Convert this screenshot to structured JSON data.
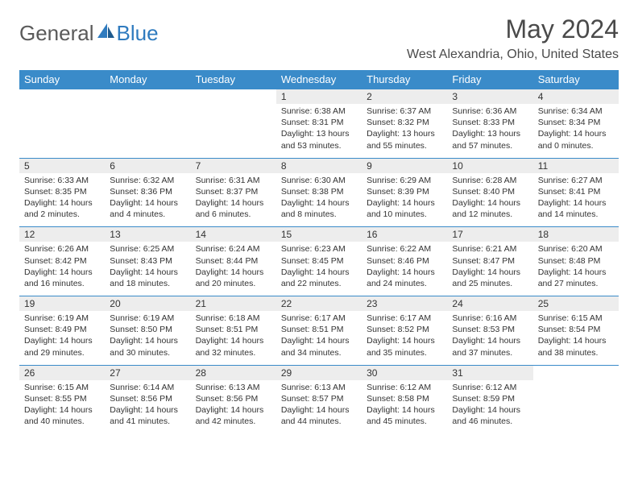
{
  "logo": {
    "text1": "General",
    "text2": "Blue"
  },
  "title": "May 2024",
  "location": "West Alexandria, Ohio, United States",
  "colors": {
    "header_bg": "#3a8bc9",
    "header_text": "#ffffff",
    "daynum_bg": "#ededed",
    "border": "#3a8bc9",
    "logo_gray": "#5a5a5a",
    "logo_blue": "#2f7bbf"
  },
  "day_names": [
    "Sunday",
    "Monday",
    "Tuesday",
    "Wednesday",
    "Thursday",
    "Friday",
    "Saturday"
  ],
  "weeks": [
    {
      "nums": [
        "",
        "",
        "",
        "1",
        "2",
        "3",
        "4"
      ],
      "cells": [
        {
          "sunrise": "",
          "sunset": "",
          "daylight1": "",
          "daylight2": ""
        },
        {
          "sunrise": "",
          "sunset": "",
          "daylight1": "",
          "daylight2": ""
        },
        {
          "sunrise": "",
          "sunset": "",
          "daylight1": "",
          "daylight2": ""
        },
        {
          "sunrise": "Sunrise: 6:38 AM",
          "sunset": "Sunset: 8:31 PM",
          "daylight1": "Daylight: 13 hours",
          "daylight2": "and 53 minutes."
        },
        {
          "sunrise": "Sunrise: 6:37 AM",
          "sunset": "Sunset: 8:32 PM",
          "daylight1": "Daylight: 13 hours",
          "daylight2": "and 55 minutes."
        },
        {
          "sunrise": "Sunrise: 6:36 AM",
          "sunset": "Sunset: 8:33 PM",
          "daylight1": "Daylight: 13 hours",
          "daylight2": "and 57 minutes."
        },
        {
          "sunrise": "Sunrise: 6:34 AM",
          "sunset": "Sunset: 8:34 PM",
          "daylight1": "Daylight: 14 hours",
          "daylight2": "and 0 minutes."
        }
      ]
    },
    {
      "nums": [
        "5",
        "6",
        "7",
        "8",
        "9",
        "10",
        "11"
      ],
      "cells": [
        {
          "sunrise": "Sunrise: 6:33 AM",
          "sunset": "Sunset: 8:35 PM",
          "daylight1": "Daylight: 14 hours",
          "daylight2": "and 2 minutes."
        },
        {
          "sunrise": "Sunrise: 6:32 AM",
          "sunset": "Sunset: 8:36 PM",
          "daylight1": "Daylight: 14 hours",
          "daylight2": "and 4 minutes."
        },
        {
          "sunrise": "Sunrise: 6:31 AM",
          "sunset": "Sunset: 8:37 PM",
          "daylight1": "Daylight: 14 hours",
          "daylight2": "and 6 minutes."
        },
        {
          "sunrise": "Sunrise: 6:30 AM",
          "sunset": "Sunset: 8:38 PM",
          "daylight1": "Daylight: 14 hours",
          "daylight2": "and 8 minutes."
        },
        {
          "sunrise": "Sunrise: 6:29 AM",
          "sunset": "Sunset: 8:39 PM",
          "daylight1": "Daylight: 14 hours",
          "daylight2": "and 10 minutes."
        },
        {
          "sunrise": "Sunrise: 6:28 AM",
          "sunset": "Sunset: 8:40 PM",
          "daylight1": "Daylight: 14 hours",
          "daylight2": "and 12 minutes."
        },
        {
          "sunrise": "Sunrise: 6:27 AM",
          "sunset": "Sunset: 8:41 PM",
          "daylight1": "Daylight: 14 hours",
          "daylight2": "and 14 minutes."
        }
      ]
    },
    {
      "nums": [
        "12",
        "13",
        "14",
        "15",
        "16",
        "17",
        "18"
      ],
      "cells": [
        {
          "sunrise": "Sunrise: 6:26 AM",
          "sunset": "Sunset: 8:42 PM",
          "daylight1": "Daylight: 14 hours",
          "daylight2": "and 16 minutes."
        },
        {
          "sunrise": "Sunrise: 6:25 AM",
          "sunset": "Sunset: 8:43 PM",
          "daylight1": "Daylight: 14 hours",
          "daylight2": "and 18 minutes."
        },
        {
          "sunrise": "Sunrise: 6:24 AM",
          "sunset": "Sunset: 8:44 PM",
          "daylight1": "Daylight: 14 hours",
          "daylight2": "and 20 minutes."
        },
        {
          "sunrise": "Sunrise: 6:23 AM",
          "sunset": "Sunset: 8:45 PM",
          "daylight1": "Daylight: 14 hours",
          "daylight2": "and 22 minutes."
        },
        {
          "sunrise": "Sunrise: 6:22 AM",
          "sunset": "Sunset: 8:46 PM",
          "daylight1": "Daylight: 14 hours",
          "daylight2": "and 24 minutes."
        },
        {
          "sunrise": "Sunrise: 6:21 AM",
          "sunset": "Sunset: 8:47 PM",
          "daylight1": "Daylight: 14 hours",
          "daylight2": "and 25 minutes."
        },
        {
          "sunrise": "Sunrise: 6:20 AM",
          "sunset": "Sunset: 8:48 PM",
          "daylight1": "Daylight: 14 hours",
          "daylight2": "and 27 minutes."
        }
      ]
    },
    {
      "nums": [
        "19",
        "20",
        "21",
        "22",
        "23",
        "24",
        "25"
      ],
      "cells": [
        {
          "sunrise": "Sunrise: 6:19 AM",
          "sunset": "Sunset: 8:49 PM",
          "daylight1": "Daylight: 14 hours",
          "daylight2": "and 29 minutes."
        },
        {
          "sunrise": "Sunrise: 6:19 AM",
          "sunset": "Sunset: 8:50 PM",
          "daylight1": "Daylight: 14 hours",
          "daylight2": "and 30 minutes."
        },
        {
          "sunrise": "Sunrise: 6:18 AM",
          "sunset": "Sunset: 8:51 PM",
          "daylight1": "Daylight: 14 hours",
          "daylight2": "and 32 minutes."
        },
        {
          "sunrise": "Sunrise: 6:17 AM",
          "sunset": "Sunset: 8:51 PM",
          "daylight1": "Daylight: 14 hours",
          "daylight2": "and 34 minutes."
        },
        {
          "sunrise": "Sunrise: 6:17 AM",
          "sunset": "Sunset: 8:52 PM",
          "daylight1": "Daylight: 14 hours",
          "daylight2": "and 35 minutes."
        },
        {
          "sunrise": "Sunrise: 6:16 AM",
          "sunset": "Sunset: 8:53 PM",
          "daylight1": "Daylight: 14 hours",
          "daylight2": "and 37 minutes."
        },
        {
          "sunrise": "Sunrise: 6:15 AM",
          "sunset": "Sunset: 8:54 PM",
          "daylight1": "Daylight: 14 hours",
          "daylight2": "and 38 minutes."
        }
      ]
    },
    {
      "nums": [
        "26",
        "27",
        "28",
        "29",
        "30",
        "31",
        ""
      ],
      "cells": [
        {
          "sunrise": "Sunrise: 6:15 AM",
          "sunset": "Sunset: 8:55 PM",
          "daylight1": "Daylight: 14 hours",
          "daylight2": "and 40 minutes."
        },
        {
          "sunrise": "Sunrise: 6:14 AM",
          "sunset": "Sunset: 8:56 PM",
          "daylight1": "Daylight: 14 hours",
          "daylight2": "and 41 minutes."
        },
        {
          "sunrise": "Sunrise: 6:13 AM",
          "sunset": "Sunset: 8:56 PM",
          "daylight1": "Daylight: 14 hours",
          "daylight2": "and 42 minutes."
        },
        {
          "sunrise": "Sunrise: 6:13 AM",
          "sunset": "Sunset: 8:57 PM",
          "daylight1": "Daylight: 14 hours",
          "daylight2": "and 44 minutes."
        },
        {
          "sunrise": "Sunrise: 6:12 AM",
          "sunset": "Sunset: 8:58 PM",
          "daylight1": "Daylight: 14 hours",
          "daylight2": "and 45 minutes."
        },
        {
          "sunrise": "Sunrise: 6:12 AM",
          "sunset": "Sunset: 8:59 PM",
          "daylight1": "Daylight: 14 hours",
          "daylight2": "and 46 minutes."
        },
        {
          "sunrise": "",
          "sunset": "",
          "daylight1": "",
          "daylight2": ""
        }
      ]
    }
  ]
}
